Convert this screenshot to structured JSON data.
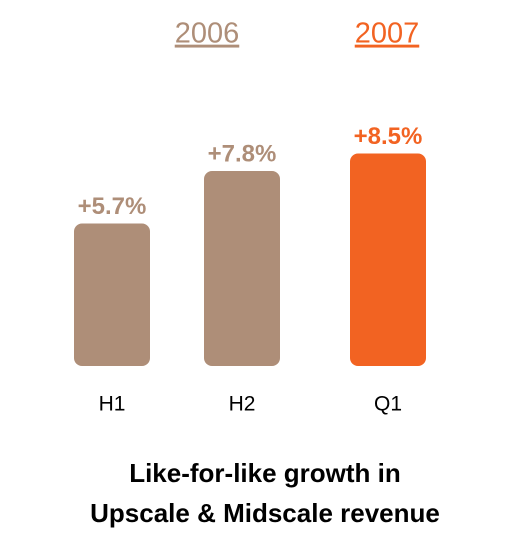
{
  "chart_data": {
    "type": "bar",
    "title": [
      "Like-for-like growth in",
      "Upscale & Midscale revenue"
    ],
    "groups": [
      {
        "label": "2006",
        "color": "#ae8e78"
      },
      {
        "label": "2007",
        "color": "#f26322"
      }
    ],
    "categories": [
      "H1",
      "H2",
      "Q1"
    ],
    "values": [
      5.7,
      7.8,
      8.5
    ],
    "value_labels": [
      "+5.7%",
      "+7.8%",
      "+8.5%"
    ],
    "colors": [
      "#ae8e78",
      "#ae8e78",
      "#f26322"
    ]
  }
}
